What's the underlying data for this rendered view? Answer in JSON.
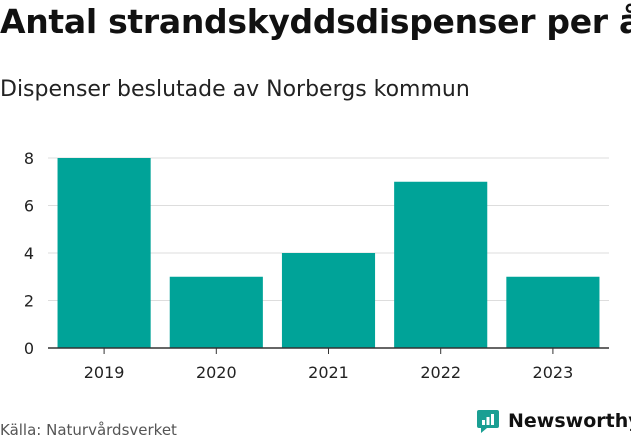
{
  "header": {
    "title": "Antal strandskyddsdispenser per år",
    "subtitle": "Dispenser beslutade av Norbergs kommun"
  },
  "footer": {
    "source": "Källa: Naturvårdsverket",
    "brand": "Newsworthy"
  },
  "colors": {
    "bar": "#00a398",
    "brand": "#1a9f93",
    "grid": "#dddddd",
    "axis": "#333333"
  },
  "chart_data": {
    "type": "bar",
    "title": "Antal strandskyddsdispenser per år",
    "subtitle": "Dispenser beslutade av Norbergs kommun",
    "categories": [
      "2019",
      "2020",
      "2021",
      "2022",
      "2023"
    ],
    "values": [
      8,
      3,
      4,
      7,
      3
    ],
    "ylim": [
      0,
      8
    ],
    "yticks": [
      0,
      2,
      4,
      6,
      8
    ],
    "xlabel": "",
    "ylabel": "",
    "grid": true
  }
}
